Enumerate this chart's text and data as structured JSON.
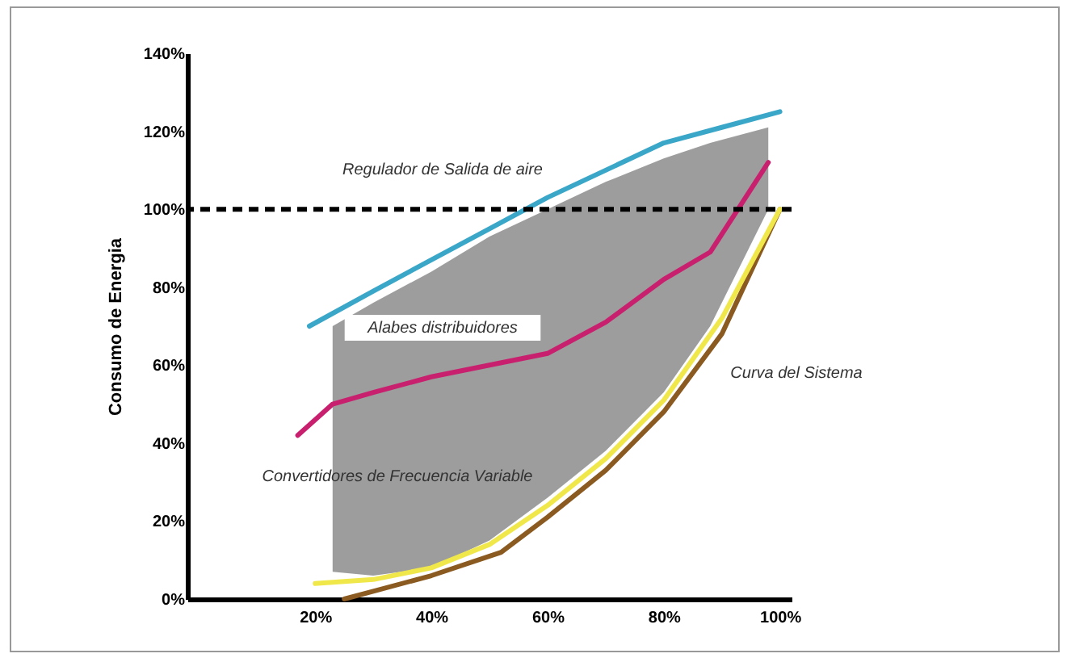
{
  "chart_data": {
    "type": "line",
    "ylabel": "Consumo de Energia",
    "xlim": [
      -2,
      102
    ],
    "ylim": [
      0,
      140
    ],
    "xticks": [
      {
        "value": 20,
        "label": "20%"
      },
      {
        "value": 40,
        "label": "40%"
      },
      {
        "value": 60,
        "label": "60%"
      },
      {
        "value": 80,
        "label": "80%"
      },
      {
        "value": 100,
        "label": "100%"
      }
    ],
    "yticks": [
      {
        "value": 0,
        "label": "0%"
      },
      {
        "value": 20,
        "label": "20%"
      },
      {
        "value": 40,
        "label": "40%"
      },
      {
        "value": 60,
        "label": "60%"
      },
      {
        "value": 80,
        "label": "80%"
      },
      {
        "value": 100,
        "label": "100%"
      },
      {
        "value": 120,
        "label": "120%"
      },
      {
        "value": 140,
        "label": "140%"
      }
    ],
    "grid": false,
    "series": [
      {
        "color": "#3aa6c8",
        "x": [
          19,
          30,
          40,
          50,
          60,
          70,
          80,
          90,
          100
        ],
        "values": [
          70,
          79,
          87,
          95,
          103,
          110,
          117,
          121,
          125
        ]
      },
      {
        "color": "#c8206e",
        "x": [
          17,
          23,
          30,
          40,
          50,
          60,
          70,
          80,
          88,
          98
        ],
        "values": [
          42,
          50,
          53,
          57,
          60,
          63,
          71,
          82,
          89,
          112
        ],
        "lower": [
          null,
          7,
          6,
          8,
          15,
          26,
          38,
          53,
          70,
          100
        ],
        "upper": [
          null,
          70,
          76,
          84,
          93,
          100,
          107,
          113,
          117,
          121
        ]
      },
      {
        "color": "#8a5a20",
        "x": [
          25,
          30,
          40,
          52,
          60,
          70,
          80,
          90,
          100
        ],
        "values": [
          0,
          2,
          6,
          12,
          21,
          33,
          48,
          68,
          100
        ]
      },
      {
        "color": "#f0e84a",
        "x": [
          20,
          30,
          40,
          50,
          60,
          70,
          80,
          90,
          100
        ],
        "values": [
          4,
          5,
          8,
          14,
          24,
          36,
          51,
          72,
          100
        ]
      }
    ],
    "ref_lines": [
      {
        "axis": "y",
        "value": 100,
        "color": "#000000",
        "line_style": "dashed"
      }
    ],
    "annotations": [
      "Regulador de Salida de aire",
      "Alabes distribuidores",
      "Convertidores de Frecuencia Variable",
      "Curva del Sistema"
    ]
  }
}
